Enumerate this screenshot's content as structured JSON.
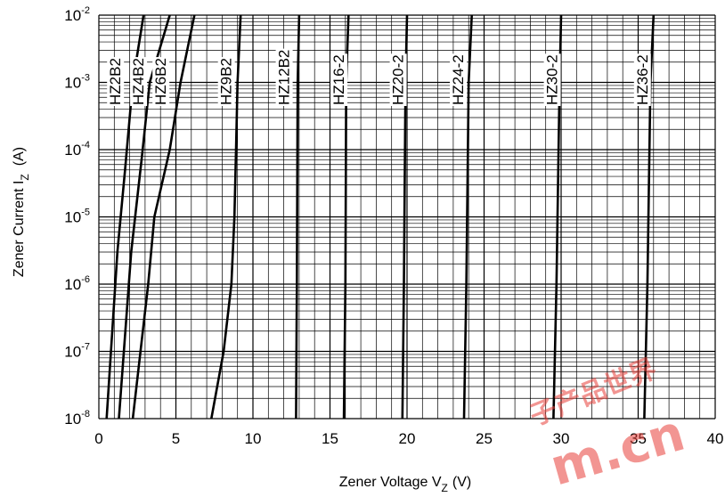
{
  "chart_data": {
    "type": "line",
    "xlabel": "Zener Voltage V",
    "xlabel_sub": "Z",
    "xlabel_unit": "(V)",
    "ylabel": "Zener Current I",
    "ylabel_sub": "Z",
    "ylabel_unit": "(A)",
    "xlim": [
      0,
      40
    ],
    "ylim": [
      1e-08,
      0.01
    ],
    "y_scale": "log",
    "grid": true,
    "x_ticks": [
      {
        "value": 0,
        "label": "0"
      },
      {
        "value": 5,
        "label": "5"
      },
      {
        "value": 10,
        "label": "10"
      },
      {
        "value": 15,
        "label": "15"
      },
      {
        "value": 20,
        "label": "20"
      },
      {
        "value": 25,
        "label": "25"
      },
      {
        "value": 30,
        "label": "30"
      },
      {
        "value": 35,
        "label": "35"
      },
      {
        "value": 40,
        "label": "40"
      }
    ],
    "y_ticks": [
      {
        "value": 0.01,
        "base": "10",
        "exp": "-2"
      },
      {
        "value": 0.001,
        "base": "10",
        "exp": "-3"
      },
      {
        "value": 0.0001,
        "base": "10",
        "exp": "-4"
      },
      {
        "value": 1e-05,
        "base": "10",
        "exp": "-5"
      },
      {
        "value": 1e-06,
        "base": "10",
        "exp": "-6"
      },
      {
        "value": 1e-07,
        "base": "10",
        "exp": "-7"
      },
      {
        "value": 1e-08,
        "base": "10",
        "exp": "-8"
      }
    ],
    "series": [
      {
        "name": "HZ2B2",
        "points": [
          [
            0.5,
            1e-08
          ],
          [
            1.2,
            3e-06
          ],
          [
            1.7,
            5e-05
          ],
          [
            2.2,
            0.001
          ],
          [
            2.9,
            0.01
          ]
        ]
      },
      {
        "name": "HZ4B2",
        "points": [
          [
            1.3,
            1e-08
          ],
          [
            2.1,
            3e-06
          ],
          [
            2.8,
            8e-05
          ],
          [
            3.3,
            0.001
          ],
          [
            4.6,
            0.01
          ]
        ]
      },
      {
        "name": "HZ6B2",
        "points": [
          [
            2.2,
            1e-08
          ],
          [
            3.2,
            1e-06
          ],
          [
            3.6,
            1e-05
          ],
          [
            4.6,
            0.0001
          ],
          [
            5.3,
            0.001
          ],
          [
            6.2,
            0.01
          ]
        ]
      },
      {
        "name": "HZ9B2",
        "points": [
          [
            7.3,
            1e-08
          ],
          [
            8.1,
            1e-07
          ],
          [
            8.6,
            1e-06
          ],
          [
            8.8,
            1e-05
          ],
          [
            8.9,
            0.0001
          ],
          [
            9.0,
            0.001
          ],
          [
            9.2,
            0.01
          ]
        ]
      },
      {
        "name": "HZ12B2",
        "points": [
          [
            12.8,
            1e-08
          ],
          [
            12.85,
            1e-06
          ],
          [
            12.9,
            0.001
          ],
          [
            13.0,
            0.01
          ]
        ]
      },
      {
        "name": "HZ16-2",
        "points": [
          [
            15.9,
            1e-08
          ],
          [
            16.0,
            1e-06
          ],
          [
            16.05,
            0.001
          ],
          [
            16.2,
            0.01
          ]
        ]
      },
      {
        "name": "HZ20-2",
        "points": [
          [
            19.7,
            1e-08
          ],
          [
            19.8,
            1e-06
          ],
          [
            19.9,
            0.001
          ],
          [
            20.0,
            0.01
          ]
        ]
      },
      {
        "name": "HZ24-2",
        "points": [
          [
            23.7,
            1e-08
          ],
          [
            23.85,
            1e-06
          ],
          [
            24.0,
            0.001
          ],
          [
            24.2,
            0.01
          ]
        ]
      },
      {
        "name": "HZ30-2",
        "points": [
          [
            29.5,
            1e-08
          ],
          [
            29.7,
            1e-06
          ],
          [
            29.9,
            0.001
          ],
          [
            30.0,
            0.01
          ]
        ]
      },
      {
        "name": "HZ36-2",
        "points": [
          [
            35.4,
            1e-08
          ],
          [
            35.6,
            1e-06
          ],
          [
            35.8,
            0.001
          ],
          [
            36.0,
            0.01
          ]
        ]
      }
    ]
  },
  "watermark": {
    "domain_text": "m.cn",
    "cjk_text": "子产品世界",
    "color": "#e8403a"
  }
}
